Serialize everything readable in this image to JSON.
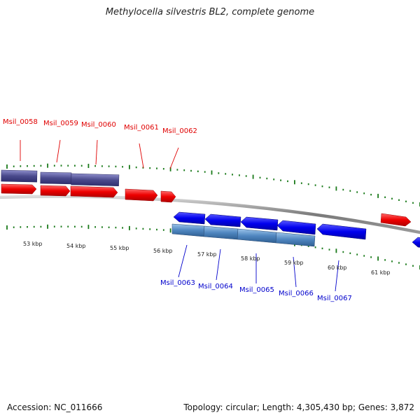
{
  "title": "Methylocella silvestris BL2, complete genome",
  "footer": {
    "accession": "Accession: NC_011666",
    "stats": "Topology: circular; Length: 4,305,430 bp; Genes: 3,872"
  },
  "colors": {
    "forward_gene": "#e00000",
    "reverse_gene": "#0000ee",
    "forward_domain": "#4a4a8c",
    "reverse_domain": "#4f86c0",
    "backbone": "#808080",
    "ticks": "#1a7a1a",
    "fwd_label": "#e00000",
    "rev_label": "#0000cc"
  },
  "forward_labels": [
    "Msil_0058",
    "Msil_0059",
    "Msil_0060",
    "Msil_0061",
    "Msil_0062"
  ],
  "reverse_labels": [
    "Msil_0063",
    "Msil_0064",
    "Msil_0065",
    "Msil_0066",
    "Msil_0067"
  ],
  "kbp_labels": [
    "53 kbp",
    "54 kbp",
    "55 kbp",
    "56 kbp",
    "57 kbp",
    "58 kbp",
    "59 kbp",
    "60 kbp",
    "61 kbp"
  ]
}
